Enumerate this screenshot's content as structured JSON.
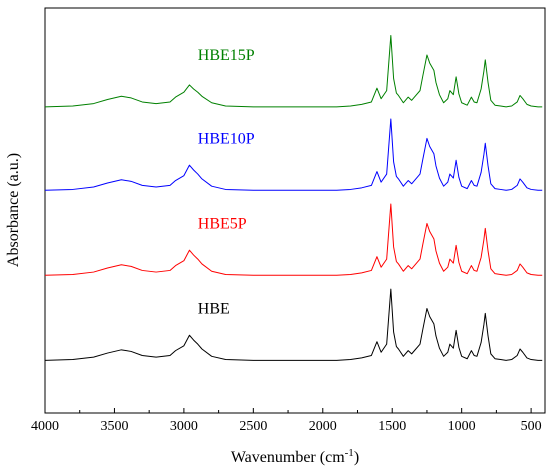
{
  "chart_data": {
    "type": "line",
    "xlabel": "Wavenumber (cm",
    "xlabel_sup": "-1",
    "xlabel_end": ")",
    "ylabel": "Absorbance (a.u.)",
    "xlim": [
      4000,
      400
    ],
    "x_reversed": true,
    "ylim": [
      0,
      5
    ],
    "grid": false,
    "x_ticks": [
      4000,
      3500,
      3000,
      2500,
      2000,
      1500,
      1000,
      500
    ],
    "x_tick_labels": [
      "4000",
      "3500",
      "3000",
      "2500",
      "2000",
      "1500",
      "1000",
      "500"
    ],
    "series": [
      {
        "name": "HBE",
        "color": "#000000",
        "offset": 0.65,
        "x": [
          4000,
          3800,
          3650,
          3550,
          3450,
          3380,
          3300,
          3200,
          3100,
          3060,
          3000,
          2960,
          2930,
          2900,
          2870,
          2800,
          2700,
          2500,
          2300,
          2100,
          1900,
          1800,
          1720,
          1650,
          1610,
          1580,
          1540,
          1510,
          1490,
          1470,
          1455,
          1420,
          1385,
          1360,
          1340,
          1300,
          1280,
          1250,
          1230,
          1200,
          1185,
          1160,
          1130,
          1100,
          1085,
          1060,
          1040,
          1020,
          1000,
          960,
          930,
          910,
          890,
          860,
          840,
          830,
          810,
          790,
          760,
          720,
          680,
          640,
          600,
          580,
          560,
          530,
          500,
          450,
          420
        ],
        "values": [
          0.0,
          0.01,
          0.04,
          0.09,
          0.13,
          0.11,
          0.06,
          0.04,
          0.06,
          0.12,
          0.18,
          0.31,
          0.25,
          0.2,
          0.14,
          0.05,
          0.01,
          0.0,
          0.0,
          0.0,
          0.0,
          0.01,
          0.03,
          0.06,
          0.23,
          0.1,
          0.2,
          0.88,
          0.35,
          0.17,
          0.14,
          0.05,
          0.12,
          0.08,
          0.12,
          0.2,
          0.38,
          0.64,
          0.54,
          0.45,
          0.3,
          0.15,
          0.05,
          0.1,
          0.2,
          0.15,
          0.37,
          0.16,
          0.05,
          0.02,
          0.12,
          0.06,
          0.05,
          0.22,
          0.44,
          0.58,
          0.3,
          0.08,
          0.02,
          0.01,
          0.0,
          0.01,
          0.06,
          0.14,
          0.1,
          0.03,
          0.01,
          0.0,
          0.0
        ]
      },
      {
        "name": "HBE5P",
        "color": "#ff0000",
        "offset": 1.7,
        "x": [
          4000,
          3800,
          3650,
          3550,
          3450,
          3380,
          3300,
          3200,
          3100,
          3060,
          3000,
          2960,
          2930,
          2900,
          2870,
          2800,
          2700,
          2500,
          2300,
          2100,
          1900,
          1800,
          1720,
          1650,
          1610,
          1580,
          1540,
          1510,
          1490,
          1470,
          1455,
          1420,
          1385,
          1360,
          1340,
          1300,
          1280,
          1250,
          1230,
          1200,
          1185,
          1160,
          1130,
          1100,
          1085,
          1060,
          1040,
          1020,
          1000,
          960,
          930,
          910,
          890,
          860,
          840,
          830,
          810,
          790,
          760,
          720,
          680,
          640,
          600,
          580,
          560,
          530,
          500,
          450,
          420
        ],
        "values": [
          0.0,
          0.01,
          0.04,
          0.09,
          0.13,
          0.11,
          0.06,
          0.04,
          0.06,
          0.12,
          0.18,
          0.31,
          0.25,
          0.2,
          0.14,
          0.05,
          0.01,
          0.0,
          0.0,
          0.0,
          0.0,
          0.01,
          0.03,
          0.06,
          0.23,
          0.1,
          0.2,
          0.88,
          0.35,
          0.17,
          0.14,
          0.05,
          0.12,
          0.08,
          0.12,
          0.2,
          0.38,
          0.64,
          0.54,
          0.45,
          0.3,
          0.15,
          0.05,
          0.1,
          0.2,
          0.15,
          0.37,
          0.16,
          0.05,
          0.02,
          0.12,
          0.06,
          0.05,
          0.22,
          0.44,
          0.58,
          0.3,
          0.08,
          0.02,
          0.01,
          0.0,
          0.01,
          0.06,
          0.14,
          0.1,
          0.03,
          0.01,
          0.0,
          0.0
        ]
      },
      {
        "name": "HBE10P",
        "color": "#0000ff",
        "offset": 2.75,
        "x": [
          4000,
          3800,
          3650,
          3550,
          3450,
          3380,
          3300,
          3200,
          3100,
          3060,
          3000,
          2960,
          2930,
          2900,
          2870,
          2800,
          2700,
          2500,
          2300,
          2100,
          1900,
          1800,
          1720,
          1650,
          1610,
          1580,
          1540,
          1510,
          1490,
          1470,
          1455,
          1420,
          1385,
          1360,
          1340,
          1300,
          1280,
          1250,
          1230,
          1200,
          1185,
          1160,
          1130,
          1100,
          1085,
          1060,
          1040,
          1020,
          1000,
          960,
          930,
          910,
          890,
          860,
          840,
          830,
          810,
          790,
          760,
          720,
          680,
          640,
          600,
          580,
          560,
          530,
          500,
          450,
          420
        ],
        "values": [
          0.0,
          0.01,
          0.04,
          0.09,
          0.13,
          0.11,
          0.06,
          0.04,
          0.06,
          0.12,
          0.18,
          0.31,
          0.25,
          0.2,
          0.14,
          0.05,
          0.01,
          0.0,
          0.0,
          0.0,
          0.0,
          0.01,
          0.03,
          0.06,
          0.23,
          0.1,
          0.2,
          0.88,
          0.35,
          0.17,
          0.14,
          0.05,
          0.12,
          0.08,
          0.12,
          0.2,
          0.38,
          0.64,
          0.54,
          0.45,
          0.3,
          0.15,
          0.05,
          0.1,
          0.2,
          0.15,
          0.37,
          0.16,
          0.05,
          0.02,
          0.12,
          0.06,
          0.05,
          0.22,
          0.44,
          0.58,
          0.3,
          0.08,
          0.02,
          0.01,
          0.0,
          0.01,
          0.06,
          0.14,
          0.1,
          0.03,
          0.01,
          0.0,
          0.0
        ]
      },
      {
        "name": "HBE15P",
        "color": "#008000",
        "offset": 3.78,
        "x": [
          4000,
          3800,
          3650,
          3550,
          3450,
          3380,
          3300,
          3200,
          3100,
          3060,
          3000,
          2960,
          2930,
          2900,
          2870,
          2800,
          2700,
          2500,
          2300,
          2100,
          1900,
          1800,
          1720,
          1650,
          1610,
          1580,
          1540,
          1510,
          1490,
          1470,
          1455,
          1420,
          1385,
          1360,
          1340,
          1300,
          1280,
          1250,
          1230,
          1200,
          1185,
          1160,
          1130,
          1100,
          1085,
          1060,
          1040,
          1020,
          1000,
          960,
          930,
          910,
          890,
          860,
          840,
          830,
          810,
          790,
          760,
          720,
          680,
          640,
          600,
          580,
          560,
          530,
          500,
          450,
          420
        ],
        "values": [
          0.0,
          0.01,
          0.04,
          0.09,
          0.13,
          0.11,
          0.06,
          0.04,
          0.06,
          0.12,
          0.18,
          0.27,
          0.22,
          0.18,
          0.13,
          0.05,
          0.01,
          0.0,
          0.0,
          0.0,
          0.0,
          0.01,
          0.03,
          0.06,
          0.23,
          0.1,
          0.2,
          0.88,
          0.35,
          0.17,
          0.14,
          0.05,
          0.12,
          0.08,
          0.12,
          0.2,
          0.38,
          0.64,
          0.54,
          0.45,
          0.3,
          0.15,
          0.05,
          0.1,
          0.2,
          0.15,
          0.37,
          0.16,
          0.05,
          0.02,
          0.12,
          0.06,
          0.05,
          0.22,
          0.44,
          0.58,
          0.3,
          0.08,
          0.02,
          0.01,
          0.0,
          0.01,
          0.06,
          0.14,
          0.1,
          0.03,
          0.01,
          0.0,
          0.0
        ]
      }
    ]
  }
}
